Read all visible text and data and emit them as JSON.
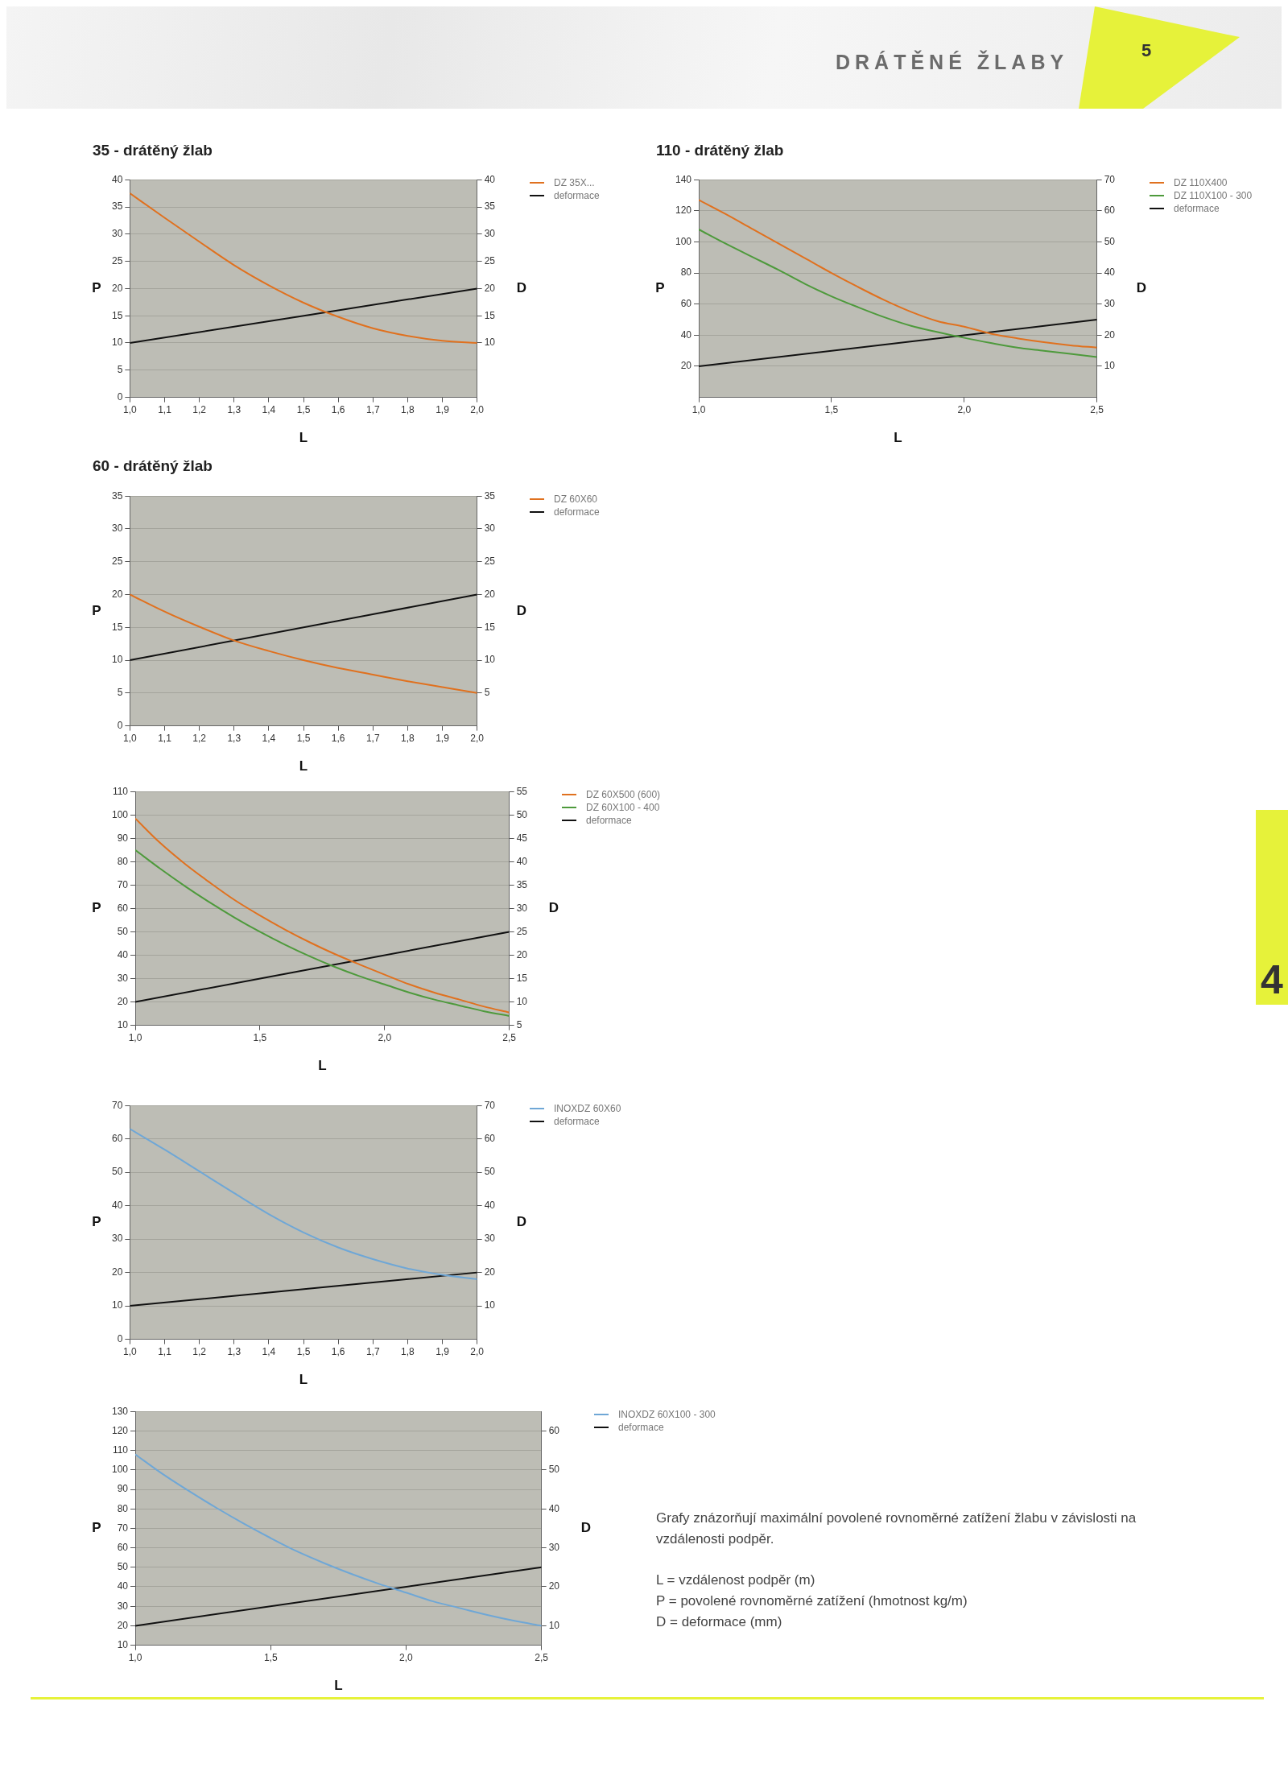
{
  "chart_data": [
    {
      "type": "line",
      "title": "35 - drátěný žlab",
      "xlabel": "L",
      "ylabel": "P",
      "y2label": "D",
      "legend": "right",
      "grid": "y",
      "annotations": [
        "DRÁTĚNÉ ŽLABY",
        "5",
        "4"
      ],
      "xlim": [
        1.0,
        2.0
      ],
      "xticks": [
        {
          "value": 1.0,
          "label": "1,0"
        },
        {
          "value": 1.1,
          "label": "1,1"
        },
        {
          "value": 1.2,
          "label": "1,2"
        },
        {
          "value": 1.3,
          "label": "1,3"
        },
        {
          "value": 1.4,
          "label": "1,4"
        },
        {
          "value": 1.5,
          "label": "1,5"
        },
        {
          "value": 1.6,
          "label": "1,6"
        },
        {
          "value": 1.7,
          "label": "1,7"
        },
        {
          "value": 1.8,
          "label": "1,8"
        },
        {
          "value": 1.9,
          "label": "1,9"
        },
        {
          "value": 2.0,
          "label": "2,0"
        }
      ],
      "ylim": [
        0,
        40
      ],
      "yticks": [
        0,
        5,
        10,
        15,
        20,
        25,
        30,
        35,
        40
      ],
      "y2lim": [
        0,
        40
      ],
      "y2ticks": [
        10,
        15,
        20,
        25,
        30,
        35,
        40
      ],
      "x": [
        1.0,
        1.1,
        1.2,
        1.3,
        1.4,
        1.5,
        1.6,
        1.7,
        1.8,
        1.9,
        2.0
      ],
      "series": [
        {
          "name": "DZ 35X...",
          "color": "#e0711f",
          "values": [
            37.5,
            33,
            28.6,
            24.3,
            20.6,
            17.4,
            14.8,
            12.7,
            11.3,
            10.4,
            10.0
          ]
        },
        {
          "name": "deformace",
          "color": "#111111",
          "axis": "y2",
          "x": [
            1.0,
            2.0
          ],
          "values": [
            10,
            20
          ]
        }
      ]
    },
    {
      "type": "line",
      "title": "110 - drátěný žlab",
      "xlabel": "L",
      "ylabel": "P",
      "y2label": "D",
      "legend": "right",
      "grid": "y",
      "xlim": [
        1.0,
        2.5
      ],
      "xticks": [
        {
          "value": 1.0,
          "label": "1,0"
        },
        {
          "value": 1.5,
          "label": "1,5"
        },
        {
          "value": 2.0,
          "label": "2,0"
        },
        {
          "value": 2.5,
          "label": "2,5"
        }
      ],
      "ylim": [
        0,
        140
      ],
      "yticks": [
        20,
        40,
        60,
        80,
        100,
        120,
        140
      ],
      "y2lim": [
        0,
        70
      ],
      "y2ticks": [
        10,
        20,
        30,
        40,
        50,
        60,
        70
      ],
      "x": [
        1.0,
        1.1,
        1.2,
        1.3,
        1.4,
        1.5,
        1.6,
        1.7,
        1.8,
        1.9,
        2.0,
        2.1,
        2.2,
        2.3,
        2.4,
        2.5
      ],
      "series": [
        {
          "name": "DZ 110X400",
          "color": "#e0711f",
          "values": [
            127,
            118,
            108.5,
            99,
            89.5,
            80,
            71,
            62.5,
            55,
            49,
            45.5,
            41,
            38,
            35.5,
            33.5,
            32
          ]
        },
        {
          "name": "DZ 110X100 - 300",
          "color": "#4e9a3c",
          "values": [
            108,
            99,
            90.5,
            82,
            73,
            65,
            58,
            51.5,
            46,
            42,
            38.3,
            35,
            32,
            30,
            28,
            26
          ]
        },
        {
          "name": "deformace",
          "color": "#111111",
          "axis": "y2",
          "x": [
            1.0,
            2.5
          ],
          "values": [
            10,
            25
          ]
        }
      ]
    },
    {
      "type": "line",
      "title": "60 - drátěný žlab",
      "xlabel": "L",
      "ylabel": "P",
      "y2label": "D",
      "legend": "right",
      "grid": "y",
      "xlim": [
        1.0,
        2.0
      ],
      "xticks": [
        {
          "value": 1.0,
          "label": "1,0"
        },
        {
          "value": 1.1,
          "label": "1,1"
        },
        {
          "value": 1.2,
          "label": "1,2"
        },
        {
          "value": 1.3,
          "label": "1,3"
        },
        {
          "value": 1.4,
          "label": "1,4"
        },
        {
          "value": 1.5,
          "label": "1,5"
        },
        {
          "value": 1.6,
          "label": "1,6"
        },
        {
          "value": 1.7,
          "label": "1,7"
        },
        {
          "value": 1.8,
          "label": "1,8"
        },
        {
          "value": 1.9,
          "label": "1,9"
        },
        {
          "value": 2.0,
          "label": "2,0"
        }
      ],
      "ylim": [
        0,
        35
      ],
      "yticks": [
        0,
        5,
        10,
        15,
        20,
        25,
        30,
        35
      ],
      "y2lim": [
        0,
        35
      ],
      "y2ticks": [
        5,
        10,
        15,
        20,
        25,
        30,
        35
      ],
      "x": [
        1.0,
        1.1,
        1.2,
        1.3,
        1.4,
        1.5,
        1.6,
        1.7,
        1.8,
        1.9,
        2.0
      ],
      "series": [
        {
          "name": "DZ 60X60",
          "color": "#e0711f",
          "values": [
            20,
            17.4,
            15.1,
            13.0,
            11.4,
            10.0,
            8.8,
            7.8,
            6.8,
            5.9,
            5.0
          ]
        },
        {
          "name": "deformace",
          "color": "#111111",
          "axis": "y2",
          "x": [
            1.0,
            2.0
          ],
          "values": [
            10,
            20
          ]
        }
      ]
    },
    {
      "type": "line",
      "xlabel": "L",
      "ylabel": "P",
      "y2label": "D",
      "legend": "right",
      "grid": "y",
      "xlim": [
        1.0,
        2.5
      ],
      "xticks": [
        {
          "value": 1.0,
          "label": "1,0"
        },
        {
          "value": 1.5,
          "label": "1,5"
        },
        {
          "value": 2.0,
          "label": "2,0"
        },
        {
          "value": 2.5,
          "label": "2,5"
        }
      ],
      "ylim": [
        10,
        110
      ],
      "yticks": [
        10,
        20,
        30,
        40,
        50,
        60,
        70,
        80,
        90,
        100,
        110
      ],
      "y2lim": [
        5,
        55
      ],
      "y2ticks": [
        5,
        10,
        15,
        20,
        25,
        30,
        35,
        40,
        45,
        50,
        55
      ],
      "x": [
        1.0,
        1.1,
        1.2,
        1.3,
        1.4,
        1.5,
        1.6,
        1.7,
        1.8,
        1.9,
        2.0,
        2.1,
        2.2,
        2.3,
        2.4,
        2.5
      ],
      "series": [
        {
          "name": "DZ 60X500 (600)",
          "color": "#e0711f",
          "values": [
            98.5,
            88,
            79,
            71,
            63.5,
            57,
            51,
            45.5,
            40.5,
            36,
            31.7,
            27.5,
            24,
            21,
            18,
            15.5
          ]
        },
        {
          "name": "DZ 60X100 - 400",
          "color": "#4e9a3c",
          "values": [
            85,
            77,
            69.5,
            62.5,
            56,
            50,
            44.5,
            39.5,
            35,
            31,
            27.5,
            24,
            21,
            18.5,
            16,
            14
          ]
        },
        {
          "name": "deformace",
          "color": "#111111",
          "axis": "y2",
          "x": [
            1.0,
            2.5
          ],
          "values": [
            10,
            25
          ]
        }
      ]
    },
    {
      "type": "line",
      "xlabel": "L",
      "ylabel": "P",
      "y2label": "D",
      "legend": "right",
      "grid": "y",
      "xlim": [
        1.0,
        2.0
      ],
      "xticks": [
        {
          "value": 1.0,
          "label": "1,0"
        },
        {
          "value": 1.1,
          "label": "1,1"
        },
        {
          "value": 1.2,
          "label": "1,2"
        },
        {
          "value": 1.3,
          "label": "1,3"
        },
        {
          "value": 1.4,
          "label": "1,4"
        },
        {
          "value": 1.5,
          "label": "1,5"
        },
        {
          "value": 1.6,
          "label": "1,6"
        },
        {
          "value": 1.7,
          "label": "1,7"
        },
        {
          "value": 1.8,
          "label": "1,8"
        },
        {
          "value": 1.9,
          "label": "1,9"
        },
        {
          "value": 2.0,
          "label": "2,0"
        }
      ],
      "ylim": [
        0,
        70
      ],
      "yticks": [
        0,
        10,
        20,
        30,
        40,
        50,
        60,
        70
      ],
      "y2lim": [
        0,
        70
      ],
      "y2ticks": [
        10,
        20,
        30,
        40,
        50,
        60,
        70
      ],
      "x": [
        1.0,
        1.1,
        1.2,
        1.3,
        1.4,
        1.5,
        1.6,
        1.7,
        1.8,
        1.9,
        2.0
      ],
      "series": [
        {
          "name": "INOXDZ 60X60",
          "color": "#6fa7d6",
          "values": [
            63,
            56.8,
            50.3,
            43.8,
            37.5,
            32,
            27.5,
            24,
            21.2,
            19.3,
            18
          ]
        },
        {
          "name": "deformace",
          "color": "#111111",
          "axis": "y2",
          "x": [
            1.0,
            2.0
          ],
          "values": [
            10,
            20
          ]
        }
      ]
    },
    {
      "type": "line",
      "xlabel": "L",
      "ylabel": "P",
      "y2label": "D",
      "legend": "right",
      "grid": "y",
      "annotations": [
        "Grafy znázorňují maximální povolené rovnoměrné zatížení žlabu v závislosti na vzdálenosti podpěr.",
        "L = vzdálenost podpěr (m)",
        "P = povolené rovnoměrné zatížení (hmotnost kg/m)",
        "D = deformace (mm)"
      ],
      "xlim": [
        1.0,
        2.5
      ],
      "xticks": [
        {
          "value": 1.0,
          "label": "1,0"
        },
        {
          "value": 1.5,
          "label": "1,5"
        },
        {
          "value": 2.0,
          "label": "2,0"
        },
        {
          "value": 2.5,
          "label": "2,5"
        }
      ],
      "ylim": [
        10,
        130
      ],
      "yticks": [
        10,
        20,
        30,
        40,
        50,
        60,
        70,
        80,
        90,
        100,
        110,
        120,
        130
      ],
      "y2lim": [
        5,
        65
      ],
      "y2ticks": [
        10,
        20,
        30,
        40,
        50,
        60
      ],
      "x": [
        1.0,
        1.1,
        1.2,
        1.3,
        1.4,
        1.5,
        1.6,
        1.7,
        1.8,
        1.9,
        2.0,
        2.1,
        2.2,
        2.3,
        2.4,
        2.5
      ],
      "series": [
        {
          "name": "INOXDZ 60X100 - 300",
          "color": "#6fa7d6",
          "values": [
            108,
            98,
            89,
            80.5,
            72.5,
            65,
            58,
            52,
            46.5,
            41.5,
            37,
            32.5,
            29,
            25.5,
            22.5,
            20
          ]
        },
        {
          "name": "deformace",
          "color": "#111111",
          "axis": "y2",
          "x": [
            1.0,
            2.5
          ],
          "values": [
            10,
            25
          ]
        }
      ]
    }
  ]
}
